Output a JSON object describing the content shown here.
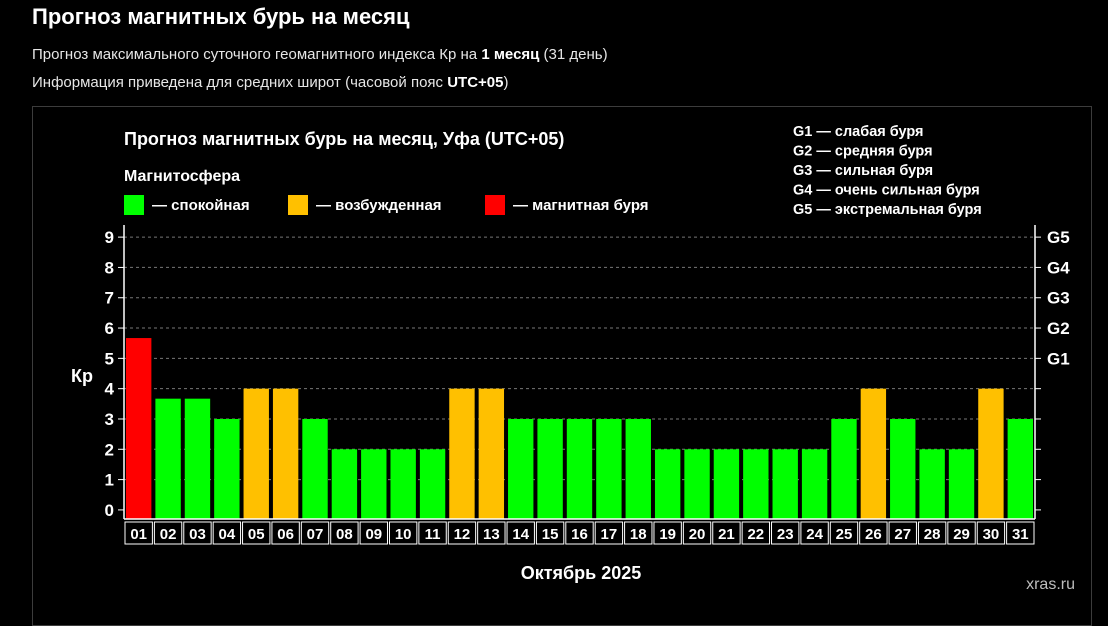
{
  "header": {
    "title": "Прогноз магнитных бурь на месяц",
    "sub1_prefix": "Прогноз максимального суточного геомагнитного индекса Кр на ",
    "sub1_bold": "1 месяц",
    "sub1_suffix": " (31 день)",
    "sub2_prefix": "Информация приведена для средних широт (часовой пояс ",
    "sub2_bold": "UTC+05",
    "sub2_suffix": ")"
  },
  "watermark": "xras.ru",
  "colors": {
    "calm": "#00ff00",
    "excited": "#ffc000",
    "storm": "#ff0000",
    "grid": "#777777",
    "background": "#000000"
  },
  "chart_data": {
    "type": "bar",
    "title": "Прогноз магнитных бурь на месяц, Уфа (UTC+05)",
    "xlabel": "Октябрь 2025",
    "ylabel": "Кр",
    "ylim": [
      0,
      9
    ],
    "yticks": [
      0,
      1,
      2,
      3,
      4,
      5,
      6,
      7,
      8,
      9
    ],
    "grid": true,
    "legend_title": "Магнитосфера",
    "legend": [
      {
        "label": "— спокойная",
        "color": "#00ff00"
      },
      {
        "label": "— возбужденная",
        "color": "#ffc000"
      },
      {
        "label": "— магнитная буря",
        "color": "#ff0000"
      }
    ],
    "g_scale_legend": [
      "G1 — слабая буря",
      "G2 — средняя буря",
      "G3 — сильная буря",
      "G4 — очень сильная буря",
      "G5 — экстремальная буря"
    ],
    "right_axis": [
      {
        "label": "G1",
        "kp": 5
      },
      {
        "label": "G2",
        "kp": 6
      },
      {
        "label": "G3",
        "kp": 7
      },
      {
        "label": "G4",
        "kp": 8
      },
      {
        "label": "G5",
        "kp": 9
      }
    ],
    "categories": [
      "01",
      "02",
      "03",
      "04",
      "05",
      "06",
      "07",
      "08",
      "09",
      "10",
      "11",
      "12",
      "13",
      "14",
      "15",
      "16",
      "17",
      "18",
      "19",
      "20",
      "21",
      "22",
      "23",
      "24",
      "25",
      "26",
      "27",
      "28",
      "29",
      "30",
      "31"
    ],
    "values": [
      5.67,
      3.67,
      3.67,
      3,
      4,
      4,
      3,
      2,
      2,
      2,
      2,
      4,
      4,
      3,
      3,
      3,
      3,
      3,
      2,
      2,
      2,
      2,
      2,
      2,
      3,
      4,
      3,
      2,
      2,
      4,
      3
    ]
  }
}
